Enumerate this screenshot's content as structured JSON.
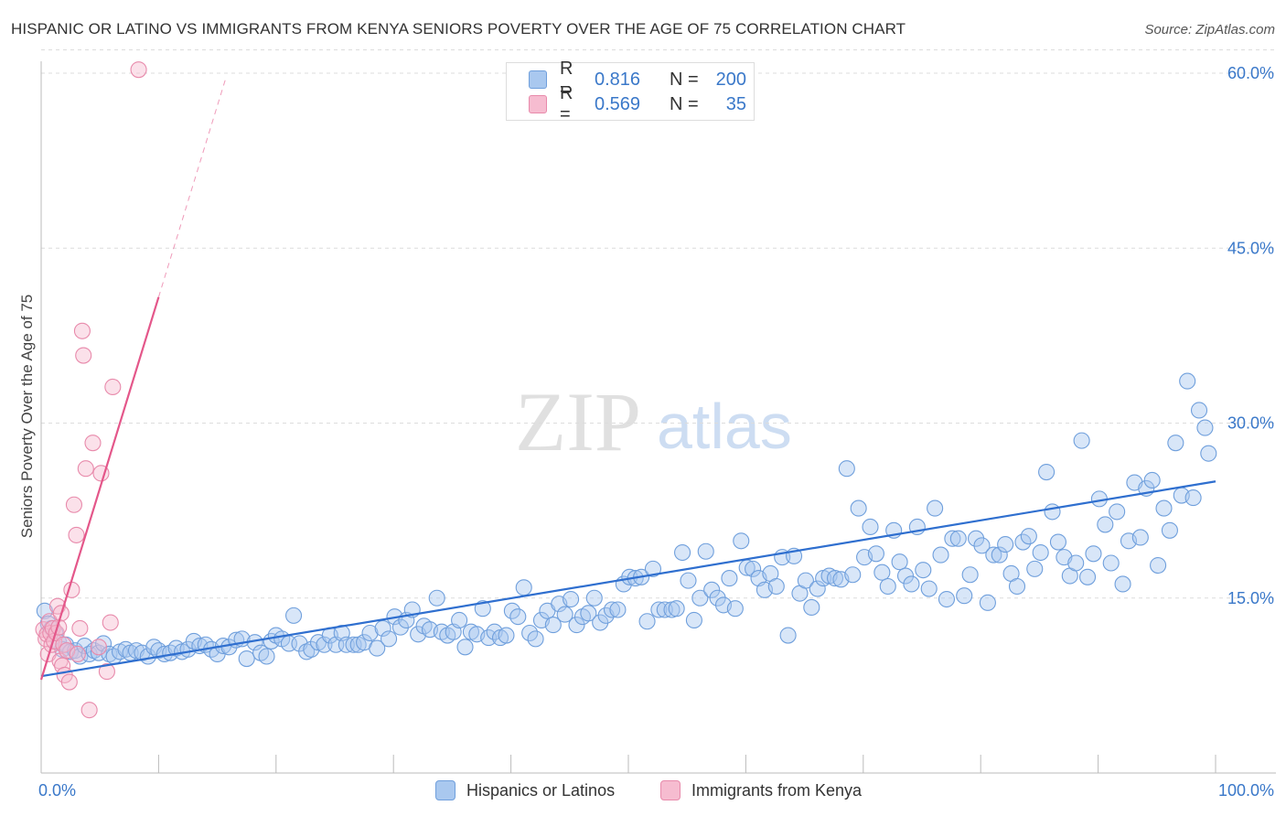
{
  "header": {
    "title": "HISPANIC OR LATINO VS IMMIGRANTS FROM KENYA SENIORS POVERTY OVER THE AGE OF 75 CORRELATION CHART",
    "source": "Source: ZipAtlas.com"
  },
  "watermark": {
    "zip": "ZIP",
    "atlas": "atlas"
  },
  "legend": {
    "r_label": "R =",
    "n_label": "N =",
    "series": [
      {
        "r": "0.816",
        "n": "200"
      },
      {
        "r": "0.569",
        "n": "35"
      }
    ]
  },
  "bottom_legend": {
    "items": [
      "Hispanics or Latinos",
      "Immigrants from Kenya"
    ]
  },
  "colors": {
    "blue_fill": "#a9c8ef",
    "blue_stroke": "#6f9fdc",
    "blue_line": "#2f6fcf",
    "pink_fill": "#f6bcd0",
    "pink_stroke": "#e88aab",
    "pink_line": "#e4578a",
    "value_text": "#3a78c9",
    "grid": "#dcdcdc"
  },
  "chart_data": {
    "type": "scatter",
    "title": "HISPANIC OR LATINO VS IMMIGRANTS FROM KENYA SENIORS POVERTY OVER THE AGE OF 75 CORRELATION CHART",
    "xlabel": "",
    "ylabel": "Seniors Poverty Over the Age of 75",
    "xlim": [
      0,
      100
    ],
    "ylim": [
      0,
      63
    ],
    "x_tick_labels": [
      "0.0%",
      "100.0%"
    ],
    "y_ticks": [
      15,
      30,
      45,
      60
    ],
    "y_tick_labels": [
      "15.0%",
      "30.0%",
      "45.0%",
      "60.0%"
    ],
    "grid": "horizontal dashed",
    "legend_position": "top-center",
    "series": [
      {
        "name": "Hispanics or Latinos",
        "color": "#a9c8ef",
        "points": [
          [
            0.3,
            13.9
          ],
          [
            0.6,
            12.8
          ],
          [
            0.9,
            12.4
          ],
          [
            1.2,
            12.0
          ],
          [
            1.5,
            11.2
          ],
          [
            1.8,
            10.6
          ],
          [
            2.1,
            11.0
          ],
          [
            2.5,
            10.4
          ],
          [
            2.9,
            10.5
          ],
          [
            3.3,
            10.0
          ],
          [
            3.7,
            10.9
          ],
          [
            4.1,
            10.2
          ],
          [
            4.5,
            10.5
          ],
          [
            4.9,
            10.3
          ],
          [
            5.3,
            11.1
          ],
          [
            5.8,
            10.2
          ],
          [
            6.2,
            10.0
          ],
          [
            6.7,
            10.4
          ],
          [
            7.2,
            10.6
          ],
          [
            7.6,
            10.3
          ],
          [
            8.1,
            10.5
          ],
          [
            8.6,
            10.3
          ],
          [
            9.1,
            10.0
          ],
          [
            9.6,
            10.8
          ],
          [
            10.0,
            10.5
          ],
          [
            10.5,
            10.2
          ],
          [
            11.0,
            10.3
          ],
          [
            11.5,
            10.7
          ],
          [
            12.0,
            10.4
          ],
          [
            12.5,
            10.6
          ],
          [
            13.0,
            11.3
          ],
          [
            13.5,
            10.9
          ],
          [
            14.0,
            11.0
          ],
          [
            14.5,
            10.6
          ],
          [
            15.0,
            10.2
          ],
          [
            15.5,
            10.9
          ],
          [
            16.0,
            10.8
          ],
          [
            16.6,
            11.4
          ],
          [
            17.1,
            11.5
          ],
          [
            17.5,
            9.8
          ],
          [
            18.2,
            11.2
          ],
          [
            18.7,
            10.3
          ],
          [
            19.2,
            10.0
          ],
          [
            19.6,
            11.3
          ],
          [
            20.0,
            11.8
          ],
          [
            20.5,
            11.5
          ],
          [
            21.1,
            11.1
          ],
          [
            21.5,
            13.5
          ],
          [
            22.0,
            11.1
          ],
          [
            22.6,
            10.4
          ],
          [
            23.0,
            10.6
          ],
          [
            23.6,
            11.2
          ],
          [
            24.1,
            11.0
          ],
          [
            24.6,
            11.8
          ],
          [
            25.1,
            11.0
          ],
          [
            25.6,
            12.0
          ],
          [
            26.0,
            11.0
          ],
          [
            26.6,
            11.0
          ],
          [
            27.0,
            11.0
          ],
          [
            27.5,
            11.2
          ],
          [
            28.0,
            12.0
          ],
          [
            28.6,
            10.7
          ],
          [
            29.1,
            12.4
          ],
          [
            29.6,
            11.5
          ],
          [
            30.1,
            13.4
          ],
          [
            30.6,
            12.5
          ],
          [
            31.1,
            13.1
          ],
          [
            31.6,
            14.0
          ],
          [
            32.1,
            11.9
          ],
          [
            32.6,
            12.6
          ],
          [
            33.1,
            12.3
          ],
          [
            33.7,
            15.0
          ],
          [
            34.1,
            12.1
          ],
          [
            34.6,
            11.8
          ],
          [
            35.1,
            12.1
          ],
          [
            35.6,
            13.1
          ],
          [
            36.1,
            10.8
          ],
          [
            36.6,
            12.1
          ],
          [
            37.1,
            11.9
          ],
          [
            37.6,
            14.1
          ],
          [
            38.1,
            11.6
          ],
          [
            38.6,
            12.1
          ],
          [
            39.1,
            11.6
          ],
          [
            39.6,
            11.8
          ],
          [
            40.1,
            13.9
          ],
          [
            40.6,
            13.4
          ],
          [
            41.1,
            15.9
          ],
          [
            41.6,
            12.0
          ],
          [
            42.1,
            11.5
          ],
          [
            42.6,
            13.1
          ],
          [
            43.1,
            13.9
          ],
          [
            43.6,
            12.7
          ],
          [
            44.1,
            14.5
          ],
          [
            44.6,
            13.6
          ],
          [
            45.1,
            14.9
          ],
          [
            45.6,
            12.7
          ],
          [
            46.1,
            13.4
          ],
          [
            46.6,
            13.7
          ],
          [
            47.1,
            15.0
          ],
          [
            47.6,
            12.9
          ],
          [
            48.1,
            13.5
          ],
          [
            48.6,
            14.0
          ],
          [
            49.1,
            14.0
          ],
          [
            49.6,
            16.2
          ],
          [
            50.1,
            16.8
          ],
          [
            50.6,
            16.7
          ],
          [
            51.1,
            16.8
          ],
          [
            51.6,
            13.0
          ],
          [
            52.1,
            17.5
          ],
          [
            52.6,
            14.0
          ],
          [
            53.1,
            14.0
          ],
          [
            53.7,
            14.0
          ],
          [
            54.1,
            14.1
          ],
          [
            54.6,
            18.9
          ],
          [
            55.1,
            16.5
          ],
          [
            55.6,
            13.1
          ],
          [
            56.1,
            15.0
          ],
          [
            56.6,
            19.0
          ],
          [
            57.1,
            15.7
          ],
          [
            57.6,
            15.0
          ],
          [
            58.1,
            14.4
          ],
          [
            58.6,
            16.7
          ],
          [
            59.1,
            14.1
          ],
          [
            59.6,
            19.9
          ],
          [
            60.1,
            17.6
          ],
          [
            60.6,
            17.5
          ],
          [
            61.1,
            16.7
          ],
          [
            61.6,
            15.7
          ],
          [
            62.1,
            17.1
          ],
          [
            62.6,
            16.0
          ],
          [
            63.1,
            18.5
          ],
          [
            63.6,
            11.8
          ],
          [
            64.1,
            18.6
          ],
          [
            64.6,
            15.4
          ],
          [
            65.1,
            16.5
          ],
          [
            65.6,
            14.2
          ],
          [
            66.1,
            15.8
          ],
          [
            66.6,
            16.7
          ],
          [
            67.1,
            16.9
          ],
          [
            67.6,
            16.7
          ],
          [
            68.1,
            16.6
          ],
          [
            68.6,
            26.1
          ],
          [
            69.1,
            17.0
          ],
          [
            69.6,
            22.7
          ],
          [
            70.1,
            18.5
          ],
          [
            70.6,
            21.1
          ],
          [
            71.1,
            18.8
          ],
          [
            71.6,
            17.2
          ],
          [
            72.1,
            16.0
          ],
          [
            72.6,
            20.8
          ],
          [
            73.1,
            18.1
          ],
          [
            73.6,
            16.9
          ],
          [
            74.1,
            16.2
          ],
          [
            74.6,
            21.1
          ],
          [
            75.1,
            17.4
          ],
          [
            75.6,
            15.8
          ],
          [
            76.1,
            22.7
          ],
          [
            76.6,
            18.7
          ],
          [
            77.1,
            14.9
          ],
          [
            77.6,
            20.1
          ],
          [
            78.1,
            20.1
          ],
          [
            78.6,
            15.2
          ],
          [
            79.1,
            17.0
          ],
          [
            79.6,
            20.1
          ],
          [
            80.1,
            19.5
          ],
          [
            80.6,
            14.6
          ],
          [
            81.1,
            18.7
          ],
          [
            81.6,
            18.7
          ],
          [
            82.1,
            19.6
          ],
          [
            82.6,
            17.1
          ],
          [
            83.1,
            16.0
          ],
          [
            83.6,
            19.8
          ],
          [
            84.1,
            20.3
          ],
          [
            84.6,
            17.5
          ],
          [
            85.1,
            18.9
          ],
          [
            85.6,
            25.8
          ],
          [
            86.1,
            22.4
          ],
          [
            86.6,
            19.8
          ],
          [
            87.1,
            18.5
          ],
          [
            87.6,
            16.9
          ],
          [
            88.1,
            18.0
          ],
          [
            88.6,
            28.5
          ],
          [
            89.1,
            16.8
          ],
          [
            89.6,
            18.8
          ],
          [
            90.1,
            23.5
          ],
          [
            90.6,
            21.3
          ],
          [
            91.1,
            18.0
          ],
          [
            91.6,
            22.4
          ],
          [
            92.1,
            16.2
          ],
          [
            92.6,
            19.9
          ],
          [
            93.1,
            24.9
          ],
          [
            93.6,
            20.2
          ],
          [
            94.1,
            24.4
          ],
          [
            94.6,
            25.1
          ],
          [
            95.1,
            17.8
          ],
          [
            95.6,
            22.7
          ],
          [
            96.1,
            20.8
          ],
          [
            96.6,
            28.3
          ],
          [
            97.1,
            23.8
          ],
          [
            97.6,
            33.6
          ],
          [
            98.1,
            23.6
          ],
          [
            98.6,
            31.1
          ],
          [
            99.1,
            29.6
          ],
          [
            99.4,
            27.4
          ]
        ]
      },
      {
        "name": "Immigrants from Kenya",
        "color": "#f6bcd0",
        "points": [
          [
            0.2,
            12.3
          ],
          [
            0.4,
            11.5
          ],
          [
            0.5,
            11.9
          ],
          [
            0.6,
            10.2
          ],
          [
            0.7,
            13.0
          ],
          [
            0.8,
            12.0
          ],
          [
            0.9,
            11.0
          ],
          [
            1.0,
            12.4
          ],
          [
            1.1,
            11.3
          ],
          [
            1.3,
            12.0
          ],
          [
            1.4,
            14.3
          ],
          [
            1.5,
            12.5
          ],
          [
            1.6,
            9.6
          ],
          [
            1.7,
            13.7
          ],
          [
            1.8,
            9.2
          ],
          [
            1.9,
            11.0
          ],
          [
            2.0,
            8.4
          ],
          [
            2.2,
            10.5
          ],
          [
            2.4,
            7.8
          ],
          [
            2.6,
            15.7
          ],
          [
            2.8,
            23.0
          ],
          [
            3.0,
            20.4
          ],
          [
            3.1,
            10.2
          ],
          [
            3.3,
            12.4
          ],
          [
            3.5,
            37.9
          ],
          [
            3.6,
            35.8
          ],
          [
            3.8,
            26.1
          ],
          [
            4.1,
            5.4
          ],
          [
            4.4,
            28.3
          ],
          [
            4.9,
            10.8
          ],
          [
            5.1,
            25.7
          ],
          [
            5.6,
            8.7
          ],
          [
            5.9,
            12.9
          ],
          [
            6.1,
            33.1
          ],
          [
            8.3,
            60.3
          ]
        ]
      }
    ],
    "trendlines": [
      {
        "series": "Hispanics or Latinos",
        "from": [
          0,
          8.3
        ],
        "to": [
          100,
          25.0
        ]
      },
      {
        "series": "Immigrants from Kenya",
        "from": [
          0,
          8.0
        ],
        "to": [
          10,
          40.8
        ],
        "extended_to": [
          15.7,
          59.5
        ]
      }
    ],
    "x_range_note_for_script": null
  }
}
